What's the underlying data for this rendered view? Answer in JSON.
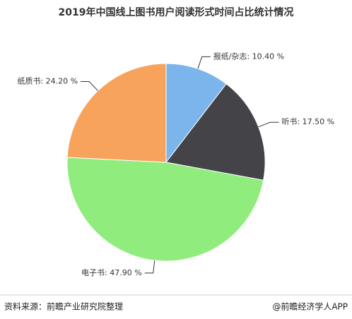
{
  "chart_data": {
    "type": "pie",
    "title": "2019年中国线上图书用户阅读形式时间占比统计情况",
    "categories": [
      "报纸/杂志",
      "听书",
      "电子书",
      "纸质书"
    ],
    "values": [
      10.4,
      17.5,
      47.9,
      24.2
    ],
    "value_labels": [
      "10.40 %",
      "17.50 %",
      "47.90 %",
      "24.20 %"
    ],
    "colors": [
      "#7cb5ec",
      "#434348",
      "#90ed7d",
      "#f7a35c"
    ]
  },
  "footer": {
    "source": "资料来源：前瞻产业研究院整理",
    "brand": "@前瞻经济学人APP"
  }
}
